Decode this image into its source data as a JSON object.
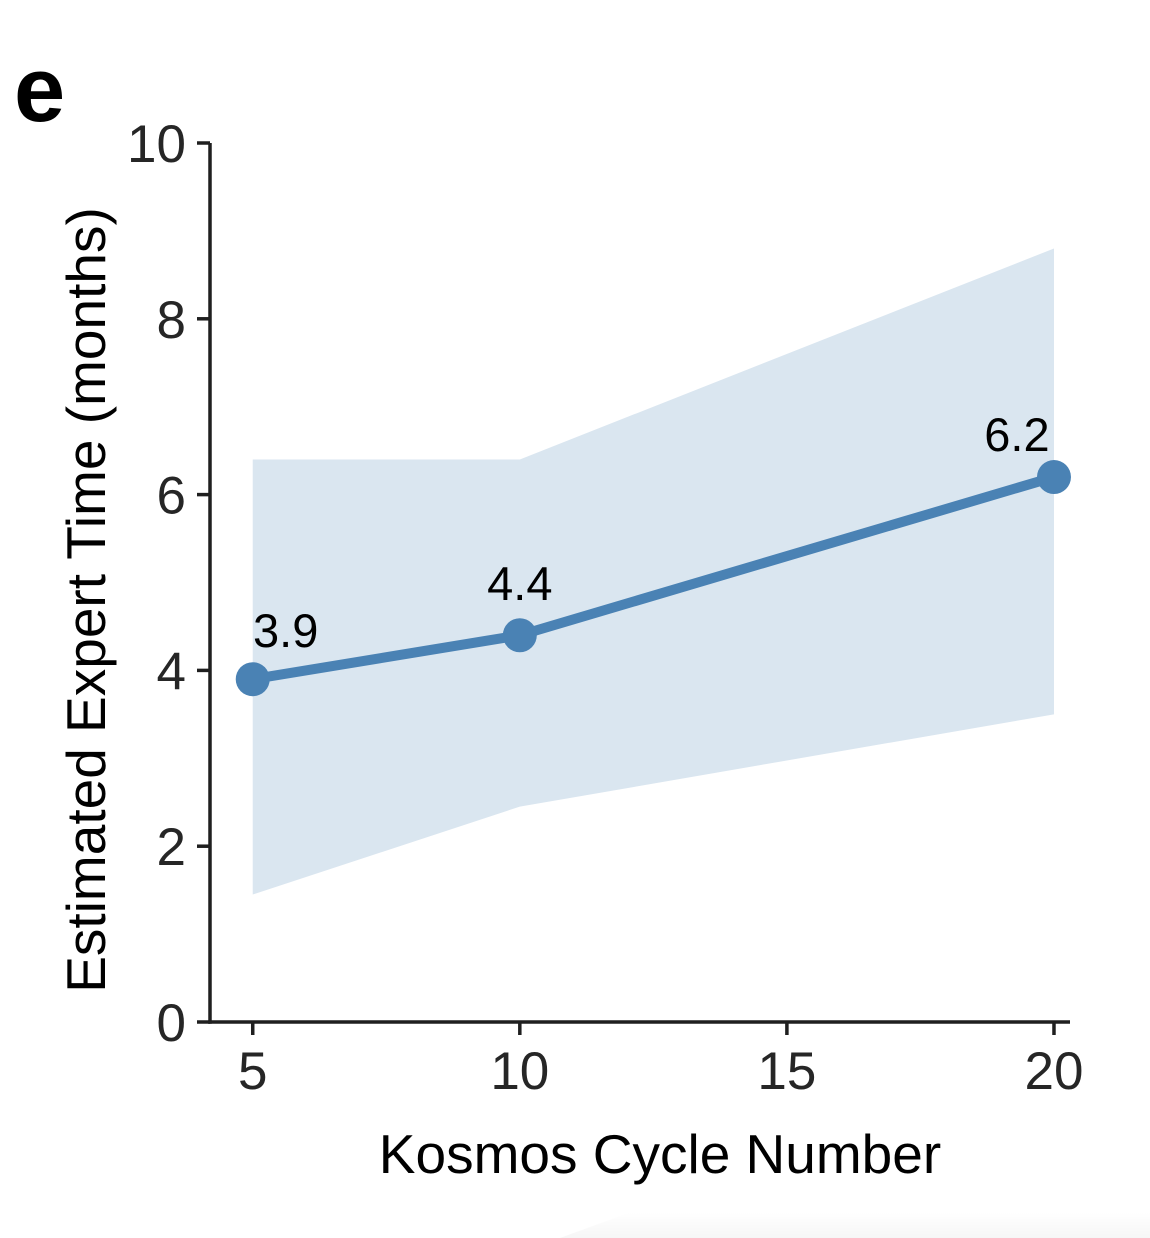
{
  "panel_label": "e",
  "chart_data": {
    "type": "line",
    "x": [
      5,
      10,
      20
    ],
    "series": [
      {
        "name": "Estimated Expert Time",
        "values": [
          3.9,
          4.4,
          6.2
        ]
      }
    ],
    "point_labels": [
      "3.9",
      "4.4",
      "6.2"
    ],
    "band_upper": [
      6.4,
      6.4,
      8.8
    ],
    "band_lower": [
      1.45,
      2.45,
      3.5
    ],
    "title": "",
    "xlabel": "Kosmos Cycle Number",
    "ylabel": "Estimated Expert Time (months)",
    "x_ticks": [
      5,
      10,
      15,
      20
    ],
    "y_ticks": [
      0,
      2,
      4,
      6,
      8,
      10
    ],
    "xlim": [
      4.2,
      20.3
    ],
    "ylim": [
      0,
      10
    ],
    "grid": false,
    "legend": "none",
    "colors": {
      "line": "#4a82b4",
      "marker": "#4a82b4",
      "band": "#dae6f0",
      "axis": "#1f1f1f",
      "tick_label": "#262626",
      "text": "#000000"
    }
  }
}
